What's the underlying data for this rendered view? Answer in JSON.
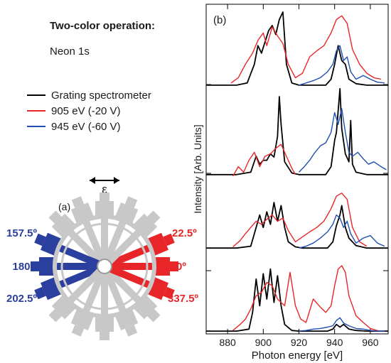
{
  "annotations": {
    "title": "Two-color operation:",
    "subtitle": "Neon 1s"
  },
  "legend": [
    {
      "label": "Grating spectrometer",
      "color": "#000000"
    },
    {
      "label": "905 eV (-20 V)",
      "color": "#e8262a"
    },
    {
      "label": "945 eV (-60 V)",
      "color": "#1f4fb0"
    }
  ],
  "diagram": {
    "panel_label": "(a)",
    "polarization_symbol": "ε",
    "angles_left": [
      "157.5º",
      "180º",
      "202.5º"
    ],
    "angles_right": [
      "22.5º",
      "0º",
      "337.5º"
    ],
    "left_color": "#2a3f9e",
    "right_color": "#e8262a",
    "detector_color": "#c8c8c8"
  },
  "chart_data": {
    "type": "line",
    "panel_label": "(b)",
    "xlabel": "Photon energy [eV]",
    "ylabel": "Intensity [Arb. Units]",
    "xlim": [
      868,
      970
    ],
    "xticks": [
      880,
      900,
      920,
      940,
      960
    ],
    "stacked_panels": 4,
    "series": [
      {
        "name": "Grating spectrometer",
        "color": "#000000",
        "panels": [
          {
            "x": [
              868,
              885,
              891,
              895,
              897,
              899,
              901,
              903,
              905,
              907,
              909,
              911,
              913,
              916,
              920,
              935,
              938,
              940,
              942,
              944,
              946,
              948,
              952,
              958,
              970
            ],
            "y": [
              0.02,
              0.02,
              0.05,
              0.3,
              0.55,
              0.45,
              0.6,
              0.75,
              0.82,
              0.7,
              0.9,
              1.0,
              0.3,
              0.05,
              0.02,
              0.02,
              0.1,
              0.3,
              0.55,
              0.35,
              0.3,
              0.1,
              0.04,
              0.02,
              0.02
            ]
          },
          {
            "x": [
              868,
              885,
              893,
              896,
              898,
              900,
              902,
              904,
              906,
              908,
              909,
              910,
              912,
              916,
              920,
              935,
              938,
              940,
              941,
              943,
              944,
              946,
              948,
              949,
              950,
              952,
              958,
              970
            ],
            "y": [
              0.02,
              0.02,
              0.05,
              0.25,
              0.15,
              0.2,
              0.2,
              0.28,
              0.24,
              0.5,
              1.0,
              0.65,
              0.18,
              0.04,
              0.02,
              0.02,
              0.12,
              0.45,
              0.55,
              1.1,
              0.6,
              0.28,
              0.18,
              0.7,
              0.15,
              0.05,
              0.02,
              0.02
            ]
          },
          {
            "x": [
              868,
              885,
              893,
              896,
              898,
              900,
              902,
              904,
              906,
              908,
              910,
              912,
              914,
              918,
              922,
              936,
              939,
              941,
              943,
              944,
              946,
              948,
              952,
              958,
              970
            ],
            "y": [
              0.02,
              0.02,
              0.05,
              0.35,
              0.55,
              0.35,
              0.6,
              0.4,
              0.75,
              0.45,
              0.7,
              0.35,
              0.12,
              0.04,
              0.02,
              0.02,
              0.12,
              0.38,
              0.55,
              0.7,
              0.35,
              0.18,
              0.06,
              0.02,
              0.02
            ]
          },
          {
            "x": [
              868,
              885,
              892,
              894,
              896,
              898,
              900,
              902,
              904,
              906,
              908,
              910,
              912,
              916,
              920,
              936,
              939,
              941,
              943,
              945,
              948,
              952,
              958,
              970
            ],
            "y": [
              0.02,
              0.02,
              0.05,
              0.3,
              0.8,
              0.4,
              0.88,
              0.5,
              0.95,
              0.45,
              0.85,
              0.4,
              0.12,
              0.03,
              0.02,
              0.02,
              0.05,
              0.12,
              0.08,
              0.12,
              0.05,
              0.03,
              0.02,
              0.02
            ]
          }
        ]
      },
      {
        "name": "905 eV (-20 V)",
        "color": "#e8262a",
        "panels": [
          {
            "x": [
              882,
              886,
              890,
              894,
              897,
              900,
              902,
              905,
              908,
              911,
              914,
              918,
              922,
              926,
              930,
              934,
              938,
              941,
              944,
              947,
              950,
              954,
              958,
              962,
              966
            ],
            "y": [
              0.05,
              0.12,
              0.3,
              0.45,
              0.62,
              0.72,
              0.55,
              0.8,
              0.68,
              0.58,
              0.3,
              0.12,
              0.18,
              0.4,
              0.48,
              0.55,
              0.72,
              0.9,
              0.95,
              0.85,
              0.5,
              0.3,
              0.18,
              0.12,
              0.1
            ]
          },
          {
            "x": [
              883,
              886,
              889,
              892,
              895,
              898,
              901,
              904,
              907,
              910,
              913,
              916,
              918
            ],
            "y": [
              0.0,
              0.12,
              0.05,
              0.2,
              0.3,
              0.12,
              0.25,
              0.28,
              0.35,
              0.4,
              0.25,
              0.1,
              0.02
            ]
          },
          {
            "x": [
              883,
              887,
              890,
              893,
              896,
              899,
              902,
              905,
              908,
              911,
              914,
              918,
              922,
              926,
              930,
              934,
              938,
              941,
              944,
              947,
              950,
              954,
              958
            ],
            "y": [
              0.04,
              0.14,
              0.25,
              0.35,
              0.45,
              0.4,
              0.48,
              0.55,
              0.45,
              0.5,
              0.3,
              0.12,
              0.2,
              0.28,
              0.35,
              0.45,
              0.65,
              0.85,
              0.9,
              0.8,
              0.35,
              0.12,
              0.05
            ]
          },
          {
            "x": [
              883,
              887,
              890,
              893,
              896,
              899,
              902,
              905,
              908,
              912,
              915,
              918,
              921,
              924,
              928,
              932,
              935,
              938,
              940,
              942,
              944,
              946,
              948,
              952,
              956,
              960,
              965
            ],
            "y": [
              0.03,
              0.12,
              0.2,
              0.35,
              0.55,
              0.6,
              0.75,
              0.7,
              0.5,
              0.4,
              0.9,
              0.4,
              0.2,
              0.15,
              0.5,
              0.38,
              0.3,
              0.4,
              0.7,
              0.95,
              1.0,
              0.9,
              0.55,
              0.25,
              0.15,
              0.06,
              0.02
            ]
          }
        ]
      },
      {
        "name": "945 eV (-60 V)",
        "color": "#1f4fb0",
        "panels": [
          {
            "x": [
              920,
              924,
              928,
              932,
              936,
              939,
              941,
              943,
              945,
              947,
              949,
              952,
              956,
              960,
              964,
              968
            ],
            "y": [
              0.02,
              0.05,
              0.08,
              0.12,
              0.2,
              0.3,
              0.48,
              0.55,
              0.35,
              0.4,
              0.2,
              0.1,
              0.15,
              0.1,
              0.06,
              0.05
            ]
          },
          {
            "x": [
              920,
              923,
              926,
              929,
              932,
              935,
              938,
              940,
              942,
              944,
              946,
              948,
              950,
              953,
              956,
              959,
              962,
              966,
              969
            ],
            "y": [
              0.05,
              0.12,
              0.2,
              0.3,
              0.38,
              0.42,
              0.55,
              0.8,
              0.65,
              0.85,
              0.55,
              0.3,
              0.25,
              0.3,
              0.22,
              0.15,
              0.18,
              0.12,
              0.08
            ]
          },
          {
            "x": [
              920,
              924,
              928,
              932,
              936,
              939,
              941,
              943,
              945,
              947,
              949,
              952,
              956,
              960,
              964,
              968
            ],
            "y": [
              0.02,
              0.05,
              0.1,
              0.18,
              0.28,
              0.4,
              0.55,
              0.5,
              0.35,
              0.45,
              0.25,
              0.1,
              0.18,
              0.22,
              0.1,
              0.05
            ]
          },
          {
            "x": [
              920,
              924,
              928,
              932,
              936,
              939,
              941,
              943,
              945,
              948,
              952,
              956,
              960,
              964,
              968
            ],
            "y": [
              0.02,
              0.03,
              0.05,
              0.06,
              0.08,
              0.1,
              0.18,
              0.22,
              0.14,
              0.1,
              0.06,
              0.05,
              0.03,
              0.02,
              0.02
            ]
          }
        ]
      }
    ],
    "grid": false,
    "legend_placement": "left"
  }
}
